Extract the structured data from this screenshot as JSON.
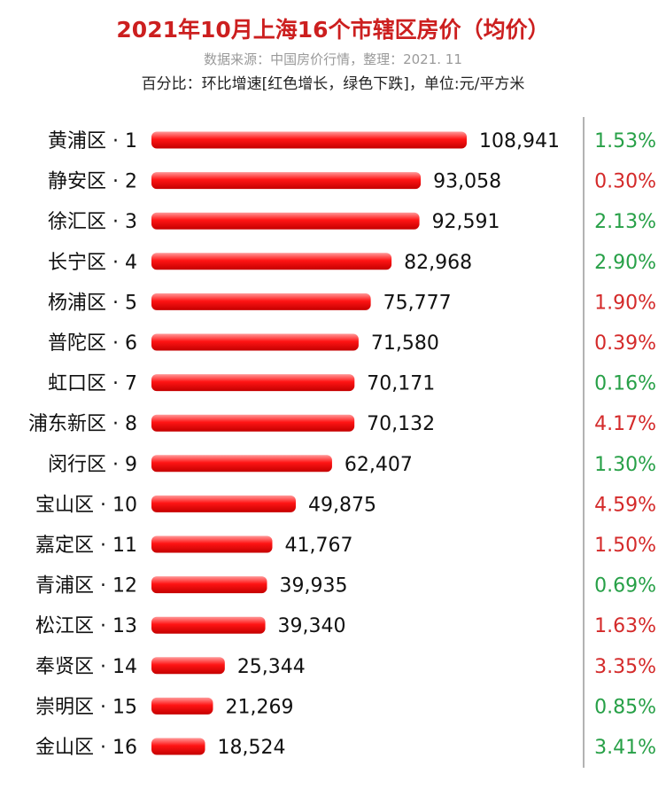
{
  "header": {
    "title": "2021年10月上海16个市辖区房价（均价）",
    "subtitle": "数据来源：中国房价行情，整理：2021. 11",
    "note": "百分比：环比增速[红色增长，绿色下跌]，单位:元/平方米"
  },
  "colors": {
    "bar": "#ff1a1a",
    "up": "#d42a2a",
    "down": "#27a047",
    "separator": "#9a9a9a"
  },
  "chart_data": {
    "type": "bar",
    "orientation": "horizontal",
    "title": "2021年10月上海16个市辖区房价（均价）",
    "unit": "元/平方米",
    "categories": [
      "黄浦区 · 1",
      "静安区 · 2",
      "徐汇区 · 3",
      "长宁区 · 4",
      "杨浦区 · 5",
      "普陀区 · 6",
      "虹口区 · 7",
      "浦东新区 · 8",
      "闵行区 · 9",
      "宝山区 · 10",
      "嘉定区 · 11",
      "青浦区 · 12",
      "松江区 · 13",
      "奉贤区 · 14",
      "崇明区 · 15",
      "金山区 · 16"
    ],
    "values": [
      108941,
      93058,
      92591,
      82968,
      75777,
      71580,
      70171,
      70132,
      62407,
      49875,
      41767,
      39935,
      39340,
      25344,
      21269,
      18524
    ],
    "value_labels": [
      "108,941",
      "93,058",
      "92,591",
      "82,968",
      "75,777",
      "71,580",
      "70,171",
      "70,132",
      "62,407",
      "49,875",
      "41,767",
      "39,935",
      "39,340",
      "25,344",
      "21,269",
      "18,524"
    ],
    "change_labels": [
      "1.53%",
      "0.30%",
      "2.13%",
      "2.90%",
      "1.90%",
      "0.39%",
      "0.16%",
      "4.17%",
      "1.30%",
      "4.59%",
      "1.50%",
      "0.69%",
      "1.63%",
      "3.35%",
      "0.85%",
      "3.41%"
    ],
    "change_direction": [
      "down",
      "up",
      "down",
      "down",
      "up",
      "up",
      "down",
      "up",
      "down",
      "up",
      "up",
      "down",
      "up",
      "up",
      "down",
      "down"
    ],
    "legend": "none",
    "grid": false
  }
}
